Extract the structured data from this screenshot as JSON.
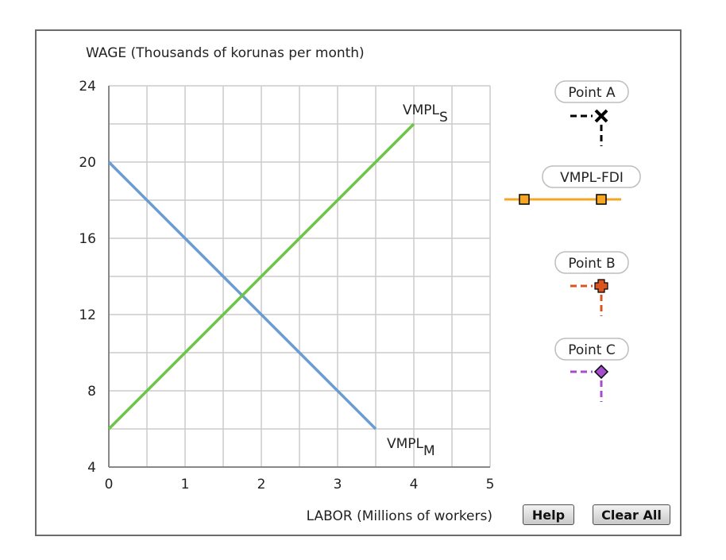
{
  "chart_data": {
    "type": "line",
    "ylabel": "WAGE (Thousands of korunas per month)",
    "xlabel": "LABOR (Millions of workers)",
    "xlim": [
      0,
      5
    ],
    "ylim": [
      4,
      24
    ],
    "xticks": [
      0,
      1,
      2,
      3,
      4,
      5
    ],
    "yticks": [
      4,
      8,
      12,
      16,
      20,
      24
    ],
    "grid": true,
    "series": [
      {
        "name": "VMPL_M",
        "label_main": "VMPL",
        "label_sub": "M",
        "color": "#6a9bd1",
        "x": [
          0,
          3.5
        ],
        "y": [
          20,
          6
        ]
      },
      {
        "name": "VMPL_S",
        "label_main": "VMPL",
        "label_sub": "S",
        "color": "#6cc644",
        "x": [
          0,
          4
        ],
        "y": [
          6,
          22
        ]
      }
    ]
  },
  "palette": {
    "point_a": {
      "label": "Point A",
      "color": "#000000",
      "marker": "x-icon"
    },
    "vmpl_fdi": {
      "label": "VMPL-FDI",
      "color": "#f5a623",
      "marker": "square-icon"
    },
    "point_b": {
      "label": "Point B",
      "color": "#d9541e",
      "marker": "plus-icon"
    },
    "point_c": {
      "label": "Point C",
      "color": "#a64ccf",
      "marker": "diamond-icon"
    }
  },
  "buttons": {
    "help": "Help",
    "clear_all": "Clear All"
  }
}
